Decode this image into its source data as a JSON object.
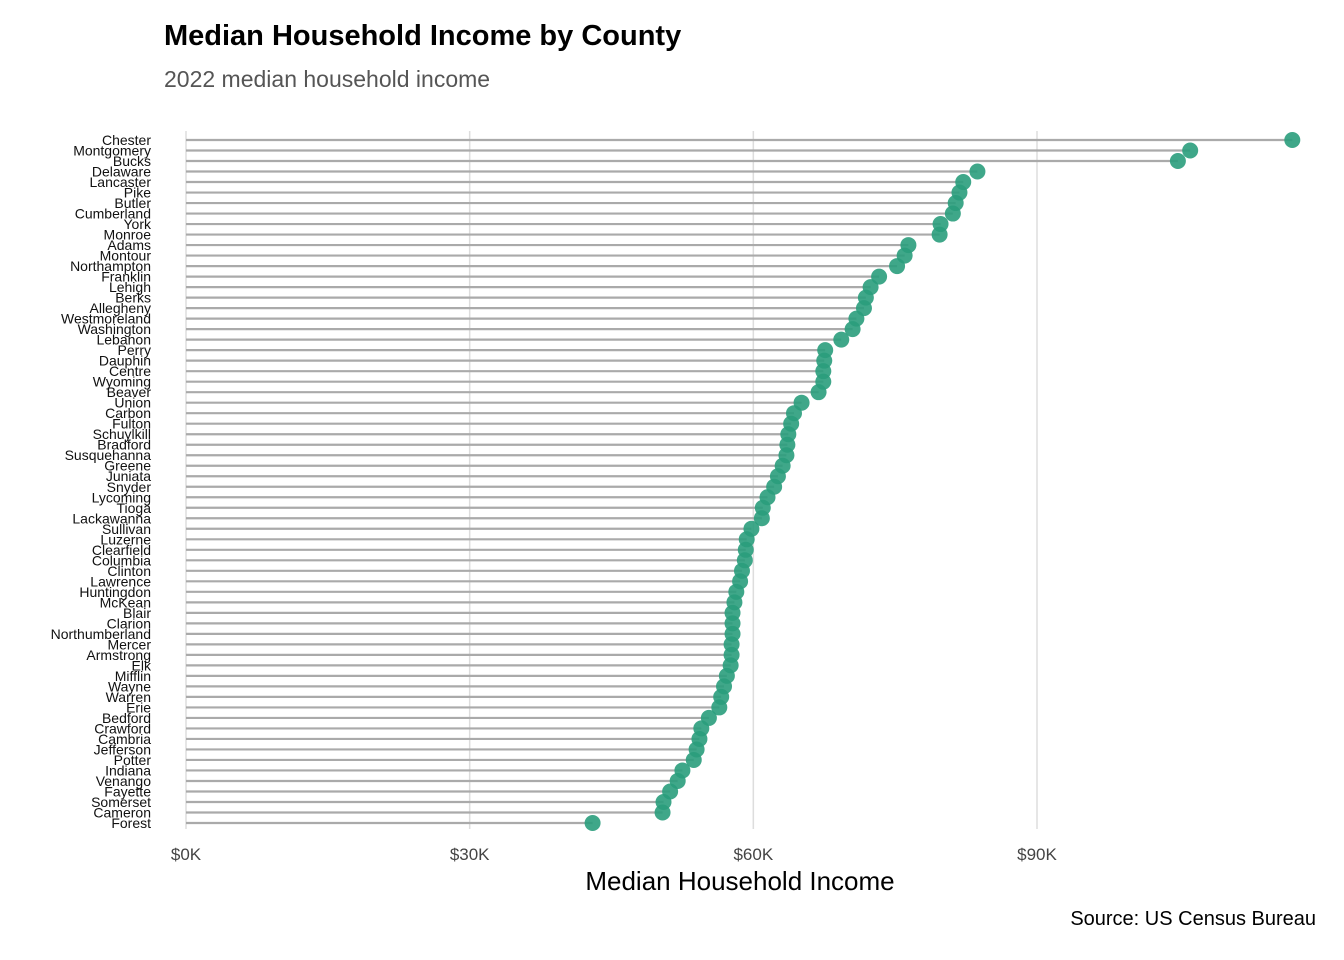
{
  "title": "Median Household Income by County",
  "subtitle": "2022 median household income",
  "caption": "Source: US Census Bureau",
  "colors": {
    "point": "#2a9d7c",
    "segment": "#aaaaaa",
    "grid": "#dddddd"
  },
  "chart_data": {
    "type": "lollipop",
    "title": "Median Household Income by County",
    "subtitle": "2022 median household income",
    "xlabel": "Median Household Income",
    "ylabel": "",
    "xlim": [
      0,
      118000
    ],
    "xticks": [
      0,
      30000,
      60000,
      90000
    ],
    "xtick_labels": [
      "$0K",
      "$30K",
      "$60K",
      "$90K"
    ],
    "grid": "vertical major gridlines",
    "categories": [
      "Chester",
      "Montgomery",
      "Bucks",
      "Delaware",
      "Lancaster",
      "Pike",
      "Butler",
      "Cumberland",
      "York",
      "Monroe",
      "Adams",
      "Montour",
      "Northampton",
      "Franklin",
      "Lehigh",
      "Berks",
      "Allegheny",
      "Westmoreland",
      "Washington",
      "Lebanon",
      "Perry",
      "Dauphin",
      "Centre",
      "Wyoming",
      "Beaver",
      "Union",
      "Carbon",
      "Fulton",
      "Schuylkill",
      "Bradford",
      "Susquehanna",
      "Greene",
      "Juniata",
      "Snyder",
      "Lycoming",
      "Tioga",
      "Lackawanna",
      "Sullivan",
      "Luzerne",
      "Clearfield",
      "Columbia",
      "Clinton",
      "Lawrence",
      "Huntingdon",
      "McKean",
      "Blair",
      "Clarion",
      "Northumberland",
      "Mercer",
      "Armstrong",
      "Elk",
      "Mifflin",
      "Wayne",
      "Warren",
      "Erie",
      "Bedford",
      "Crawford",
      "Cambria",
      "Jefferson",
      "Potter",
      "Indiana",
      "Venango",
      "Fayette",
      "Somerset",
      "Cameron",
      "Forest"
    ],
    "values": [
      117000,
      106200,
      104900,
      83700,
      82200,
      81800,
      81400,
      81100,
      79800,
      79700,
      76400,
      76000,
      75200,
      73300,
      72400,
      71900,
      71700,
      70900,
      70500,
      69300,
      67600,
      67500,
      67400,
      67400,
      66900,
      65100,
      64300,
      64000,
      63700,
      63600,
      63500,
      63100,
      62600,
      62200,
      61500,
      61000,
      60900,
      59800,
      59300,
      59200,
      59100,
      58800,
      58600,
      58200,
      58000,
      57800,
      57800,
      57800,
      57700,
      57700,
      57600,
      57200,
      56900,
      56600,
      56400,
      55300,
      54500,
      54300,
      54000,
      53700,
      52500,
      52000,
      51200,
      50500,
      50400,
      43000
    ]
  }
}
